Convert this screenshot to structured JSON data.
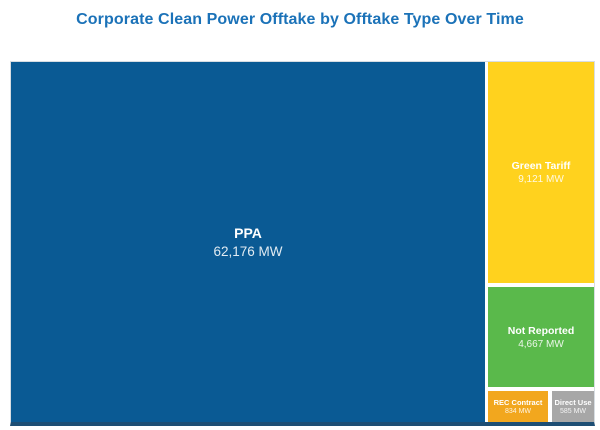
{
  "title": "Corporate Clean Power Offtake by Offtake Type Over Time",
  "unit": "MW",
  "colors": {
    "title_text": "#1b72b8",
    "ppa_blue": "#0a5a94",
    "green_tariff_yellow": "#ffd21e",
    "not_reported_green": "#5ab94b",
    "rec_contract_orange": "#f2a71e",
    "direct_use_gray": "#a7a7a7",
    "treemap_border": "#d7dde2",
    "treemap_bottom_edge": "#1d4e74",
    "cell_text": "#ffffff"
  },
  "chart_data": {
    "type": "treemap",
    "title": "Corporate Clean Power Offtake by Offtake Type Over Time",
    "unit": "MW",
    "legend_position": "none",
    "items": [
      {
        "label": "PPA",
        "value_mw": 62176,
        "value_label": "62,176 MW",
        "color": "#0a5a94"
      },
      {
        "label": "Green Tariff",
        "value_mw": 9121,
        "value_label": "9,121 MW",
        "color": "#ffd21e"
      },
      {
        "label": "Not Reported",
        "value_mw": 4667,
        "value_label": "4,667 MW",
        "color": "#5ab94b"
      },
      {
        "label": "REC Contract",
        "value_mw": 834,
        "value_label": "834 MW",
        "color": "#f2a71e"
      },
      {
        "label": "Direct Use",
        "value_mw": 585,
        "value_label": "585 MW",
        "color": "#a7a7a7"
      }
    ]
  }
}
